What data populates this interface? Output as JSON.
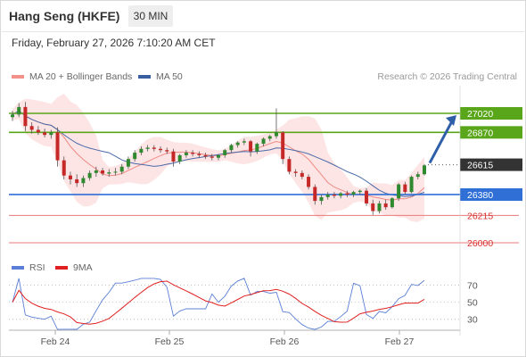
{
  "header": {
    "title": "Hang Seng (HKFE)",
    "interval": "30 MIN",
    "datetime": "Friday, February 27, 2026 7:10:20 AM CET"
  },
  "legend": {
    "items": [
      {
        "label": "MA 20 + Bollinger Bands",
        "color": "#f4908a"
      },
      {
        "label": "MA 50",
        "color": "#3a5fa0"
      }
    ],
    "credit": "Research © 2026 Trading Central"
  },
  "rsi_legend": {
    "items": [
      {
        "label": "RSI",
        "color": "#5b7fd6"
      },
      {
        "label": "9MA",
        "color": "#e02020"
      }
    ]
  },
  "chart_data": {
    "type": "candlestick",
    "x_ticks": [
      "Feb 24",
      "Feb 25",
      "Feb 26",
      "Feb 27"
    ],
    "y_scale": {
      "min": 25900,
      "max": 27200
    },
    "last_price": {
      "value": 26615,
      "label": "26615",
      "color": "#333333"
    },
    "levels": [
      {
        "value": 27020,
        "label": "27020",
        "kind": "resistance",
        "color": "#5aa61a"
      },
      {
        "value": 26870,
        "label": "26870",
        "kind": "resistance",
        "color": "#5aa61a"
      },
      {
        "value": 26380,
        "label": "26380",
        "kind": "pivot",
        "color": "#2f6fd6"
      },
      {
        "value": 26215,
        "label": "26215",
        "kind": "support",
        "color": "#d9302c"
      },
      {
        "value": 26000,
        "label": "26000",
        "kind": "support",
        "color": "#d9302c"
      }
    ],
    "forecast_arrow": {
      "from": 26615,
      "to": 27020,
      "color": "#2f5fa8"
    },
    "candles": [
      [
        26990,
        27040,
        26960,
        27010
      ],
      [
        27010,
        27100,
        26990,
        27070
      ],
      [
        27070,
        27110,
        26880,
        26920
      ],
      [
        26920,
        26950,
        26860,
        26890
      ],
      [
        26890,
        26920,
        26850,
        26870
      ],
      [
        26870,
        26900,
        26830,
        26850
      ],
      [
        26850,
        26890,
        26820,
        26870
      ],
      [
        26870,
        26910,
        26600,
        26650
      ],
      [
        26650,
        26680,
        26500,
        26530
      ],
      [
        26530,
        26560,
        26460,
        26500
      ],
      [
        26500,
        26540,
        26440,
        26470
      ],
      [
        26470,
        26530,
        26440,
        26510
      ],
      [
        26510,
        26570,
        26490,
        26550
      ],
      [
        26550,
        26600,
        26520,
        26570
      ],
      [
        26570,
        26590,
        26530,
        26545
      ],
      [
        26545,
        26580,
        26520,
        26555
      ],
      [
        26555,
        26590,
        26530,
        26560
      ],
      [
        26560,
        26620,
        26540,
        26600
      ],
      [
        26600,
        26680,
        26580,
        26660
      ],
      [
        26660,
        26730,
        26640,
        26710
      ],
      [
        26710,
        26760,
        26690,
        26740
      ],
      [
        26740,
        26770,
        26720,
        26750
      ],
      [
        26750,
        26770,
        26720,
        26740
      ],
      [
        26740,
        26760,
        26710,
        26730
      ],
      [
        26730,
        26750,
        26700,
        26720
      ],
      [
        26720,
        26740,
        26600,
        26640
      ],
      [
        26640,
        26700,
        26620,
        26690
      ],
      [
        26690,
        26730,
        26670,
        26710
      ],
      [
        26710,
        26730,
        26680,
        26700
      ],
      [
        26700,
        26720,
        26670,
        26690
      ],
      [
        26690,
        26710,
        26660,
        26680
      ],
      [
        26680,
        26700,
        26650,
        26670
      ],
      [
        26670,
        26700,
        26650,
        26690
      ],
      [
        26690,
        26740,
        26670,
        26730
      ],
      [
        26730,
        26780,
        26710,
        26770
      ],
      [
        26770,
        26800,
        26750,
        26790
      ],
      [
        26790,
        26820,
        26770,
        26800
      ],
      [
        26800,
        26810,
        26680,
        26720
      ],
      [
        26720,
        26790,
        26700,
        26780
      ],
      [
        26780,
        26830,
        26760,
        26820
      ],
      [
        26820,
        26850,
        26800,
        26840
      ],
      [
        26840,
        27060,
        26820,
        26870
      ],
      [
        26870,
        26880,
        26620,
        26660
      ],
      [
        26660,
        26680,
        26540,
        26560
      ],
      [
        26560,
        26580,
        26520,
        26550
      ],
      [
        26550,
        26570,
        26500,
        26520
      ],
      [
        26520,
        26540,
        26420,
        26440
      ],
      [
        26440,
        26460,
        26300,
        26330
      ],
      [
        26330,
        26380,
        26300,
        26360
      ],
      [
        26360,
        26400,
        26340,
        26380
      ],
      [
        26380,
        26400,
        26350,
        26370
      ],
      [
        26370,
        26400,
        26350,
        26390
      ],
      [
        26390,
        26410,
        26360,
        26380
      ],
      [
        26380,
        26410,
        26360,
        26400
      ],
      [
        26400,
        26420,
        26380,
        26410
      ],
      [
        26410,
        26430,
        26290,
        26310
      ],
      [
        26310,
        26340,
        26220,
        26250
      ],
      [
        26250,
        26330,
        26230,
        26310
      ],
      [
        26310,
        26340,
        26260,
        26280
      ],
      [
        26280,
        26360,
        26270,
        26350
      ],
      [
        26350,
        26470,
        26330,
        26460
      ],
      [
        26460,
        26480,
        26380,
        26400
      ],
      [
        26400,
        26530,
        26390,
        26520
      ],
      [
        26520,
        26560,
        26500,
        26540
      ],
      [
        26540,
        26620,
        26530,
        26610
      ]
    ],
    "rsi": {
      "ticks": [
        70,
        50,
        30
      ],
      "ylim": [
        15,
        80
      ]
    }
  }
}
